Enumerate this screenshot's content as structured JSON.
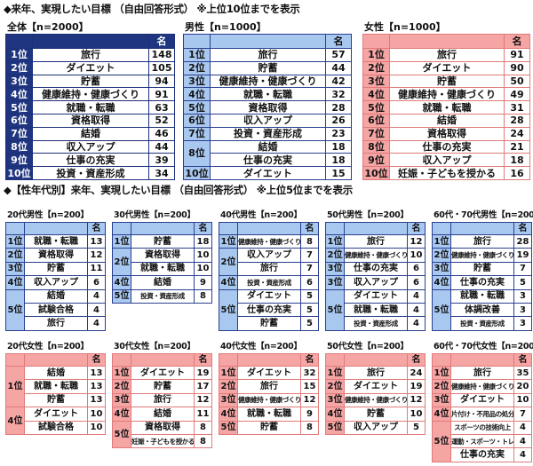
{
  "title1": "◆来年、実現したい目標 （自由回答形式） ※上位10位までを表示",
  "title2": "◆【性年代別】来年、実現したい目標 （自由回答形式） ※上位5位までを表示",
  "count_header": "名",
  "colors": {
    "overall": "#1f3580",
    "male": "#a9c8f0",
    "female": "#f6a5a5"
  },
  "top_tables": [
    {
      "caption": "全体【n=2000】",
      "theme": "all",
      "groups": [
        {
          "rank": "1位",
          "items": [
            {
              "label": "旅行",
              "count": "148"
            }
          ]
        },
        {
          "rank": "2位",
          "items": [
            {
              "label": "ダイエット",
              "count": "105"
            }
          ]
        },
        {
          "rank": "3位",
          "items": [
            {
              "label": "貯蓄",
              "count": "94"
            }
          ]
        },
        {
          "rank": "4位",
          "items": [
            {
              "label": "健康維持・健康づくり",
              "count": "91"
            }
          ]
        },
        {
          "rank": "5位",
          "items": [
            {
              "label": "就職・転職",
              "count": "63"
            }
          ]
        },
        {
          "rank": "6位",
          "items": [
            {
              "label": "資格取得",
              "count": "52"
            }
          ]
        },
        {
          "rank": "7位",
          "items": [
            {
              "label": "結婚",
              "count": "46"
            }
          ]
        },
        {
          "rank": "8位",
          "items": [
            {
              "label": "収入アップ",
              "count": "44"
            }
          ]
        },
        {
          "rank": "9位",
          "items": [
            {
              "label": "仕事の充実",
              "count": "39"
            }
          ]
        },
        {
          "rank": "10位",
          "items": [
            {
              "label": "投資・資産形成",
              "count": "34"
            }
          ]
        }
      ]
    },
    {
      "caption": "男性【n=1000】",
      "theme": "male",
      "groups": [
        {
          "rank": "1位",
          "items": [
            {
              "label": "旅行",
              "count": "57"
            }
          ]
        },
        {
          "rank": "2位",
          "items": [
            {
              "label": "貯蓄",
              "count": "44"
            }
          ]
        },
        {
          "rank": "3位",
          "items": [
            {
              "label": "健康維持・健康づくり",
              "count": "42"
            }
          ]
        },
        {
          "rank": "4位",
          "items": [
            {
              "label": "就職・転職",
              "count": "32"
            }
          ]
        },
        {
          "rank": "5位",
          "items": [
            {
              "label": "資格取得",
              "count": "28"
            }
          ]
        },
        {
          "rank": "6位",
          "items": [
            {
              "label": "収入アップ",
              "count": "26"
            }
          ]
        },
        {
          "rank": "7位",
          "items": [
            {
              "label": "投資・資産形成",
              "count": "23"
            }
          ]
        },
        {
          "rank": "8位",
          "items": [
            {
              "label": "結婚",
              "count": "18"
            },
            {
              "label": "仕事の充実",
              "count": "18"
            }
          ]
        },
        {
          "rank": "10位",
          "items": [
            {
              "label": "ダイエット",
              "count": "15"
            }
          ]
        }
      ]
    },
    {
      "caption": "女性【n=1000】",
      "theme": "fem",
      "groups": [
        {
          "rank": "1位",
          "items": [
            {
              "label": "旅行",
              "count": "91"
            }
          ]
        },
        {
          "rank": "2位",
          "items": [
            {
              "label": "ダイエット",
              "count": "90"
            }
          ]
        },
        {
          "rank": "3位",
          "items": [
            {
              "label": "貯蓄",
              "count": "50"
            }
          ]
        },
        {
          "rank": "4位",
          "items": [
            {
              "label": "健康維持・健康づくり",
              "count": "49"
            }
          ]
        },
        {
          "rank": "5位",
          "items": [
            {
              "label": "就職・転職",
              "count": "31"
            }
          ]
        },
        {
          "rank": "6位",
          "items": [
            {
              "label": "結婚",
              "count": "28"
            }
          ]
        },
        {
          "rank": "7位",
          "items": [
            {
              "label": "資格取得",
              "count": "24"
            }
          ]
        },
        {
          "rank": "8位",
          "items": [
            {
              "label": "仕事の充実",
              "count": "21"
            }
          ]
        },
        {
          "rank": "9位",
          "items": [
            {
              "label": "収入アップ",
              "count": "18"
            }
          ]
        },
        {
          "rank": "10位",
          "items": [
            {
              "label": "妊娠・子どもを授かる",
              "count": "16"
            }
          ]
        }
      ]
    }
  ],
  "male_tables": [
    {
      "caption": "20代男性【n=200】",
      "groups": [
        {
          "rank": "1位",
          "items": [
            {
              "label": "就職・転職",
              "count": "13"
            }
          ]
        },
        {
          "rank": "2位",
          "items": [
            {
              "label": "資格取得",
              "count": "12"
            }
          ]
        },
        {
          "rank": "3位",
          "items": [
            {
              "label": "貯蓄",
              "count": "11"
            }
          ]
        },
        {
          "rank": "4位",
          "items": [
            {
              "label": "収入アップ",
              "count": "6"
            }
          ]
        },
        {
          "rank": "5位",
          "items": [
            {
              "label": "結婚",
              "count": "4"
            },
            {
              "label": "試験合格",
              "count": "4"
            },
            {
              "label": "旅行",
              "count": "4"
            }
          ]
        }
      ]
    },
    {
      "caption": "30代男性【n=200】",
      "groups": [
        {
          "rank": "1位",
          "items": [
            {
              "label": "貯蓄",
              "count": "18"
            }
          ]
        },
        {
          "rank": "2位",
          "items": [
            {
              "label": "資格取得",
              "count": "10"
            },
            {
              "label": "就職・転職",
              "count": "10"
            }
          ]
        },
        {
          "rank": "4位",
          "items": [
            {
              "label": "結婚",
              "count": "9"
            }
          ]
        },
        {
          "rank": "5位",
          "items": [
            {
              "label": "投資・資産形成",
              "count": "8"
            }
          ]
        }
      ]
    },
    {
      "caption": "40代男性【n=200】",
      "groups": [
        {
          "rank": "1位",
          "items": [
            {
              "label": "健康維持・健康づくり",
              "count": "8"
            }
          ]
        },
        {
          "rank": "2位",
          "items": [
            {
              "label": "収入アップ",
              "count": "7"
            },
            {
              "label": "旅行",
              "count": "7"
            }
          ]
        },
        {
          "rank": "4位",
          "items": [
            {
              "label": "投資・資産形成",
              "count": "6"
            }
          ]
        },
        {
          "rank": "5位",
          "items": [
            {
              "label": "ダイエット",
              "count": "5"
            },
            {
              "label": "仕事の充実",
              "count": "5"
            },
            {
              "label": "貯蓄",
              "count": "5"
            }
          ]
        }
      ]
    },
    {
      "caption": "50代男性【n=200】",
      "groups": [
        {
          "rank": "1位",
          "items": [
            {
              "label": "旅行",
              "count": "12"
            }
          ]
        },
        {
          "rank": "2位",
          "items": [
            {
              "label": "健康維持・健康づくり",
              "count": "10"
            }
          ]
        },
        {
          "rank": "3位",
          "items": [
            {
              "label": "仕事の充実",
              "count": "6"
            }
          ]
        },
        {
          "rank": "3位",
          "items": [
            {
              "label": "収入アップ",
              "count": "6"
            }
          ]
        },
        {
          "rank": "5位",
          "items": [
            {
              "label": "ダイエット",
              "count": "4"
            },
            {
              "label": "就職・転職",
              "count": "4"
            },
            {
              "label": "投資・資産形成",
              "count": "4"
            }
          ]
        }
      ]
    },
    {
      "caption": "60代・70代男性【n=200】",
      "groups": [
        {
          "rank": "1位",
          "items": [
            {
              "label": "旅行",
              "count": "28"
            }
          ]
        },
        {
          "rank": "2位",
          "items": [
            {
              "label": "健康維持・健康づくり",
              "count": "19"
            }
          ]
        },
        {
          "rank": "3位",
          "items": [
            {
              "label": "貯蓄",
              "count": "7"
            }
          ]
        },
        {
          "rank": "4位",
          "items": [
            {
              "label": "仕事の充実",
              "count": "5"
            }
          ]
        },
        {
          "rank": "5位",
          "items": [
            {
              "label": "就職・転職",
              "count": "3"
            },
            {
              "label": "体調改善",
              "count": "3"
            },
            {
              "label": "投資・資産形成",
              "count": "3"
            }
          ]
        }
      ]
    }
  ],
  "female_tables": [
    {
      "caption": "20代女性【n=200】",
      "groups": [
        {
          "rank": "1位",
          "items": [
            {
              "label": "結婚",
              "count": "13"
            },
            {
              "label": "就職・転職",
              "count": "13"
            },
            {
              "label": "貯蓄",
              "count": "13"
            }
          ]
        },
        {
          "rank": "4位",
          "items": [
            {
              "label": "ダイエット",
              "count": "10"
            },
            {
              "label": "試験合格",
              "count": "10"
            }
          ]
        }
      ]
    },
    {
      "caption": "30代女性【n=200】",
      "groups": [
        {
          "rank": "1位",
          "items": [
            {
              "label": "ダイエット",
              "count": "19"
            }
          ]
        },
        {
          "rank": "2位",
          "items": [
            {
              "label": "貯蓄",
              "count": "17"
            }
          ]
        },
        {
          "rank": "3位",
          "items": [
            {
              "label": "旅行",
              "count": "12"
            }
          ]
        },
        {
          "rank": "4位",
          "items": [
            {
              "label": "結婚",
              "count": "11"
            }
          ]
        },
        {
          "rank": "5位",
          "items": [
            {
              "label": "資格取得",
              "count": "8"
            },
            {
              "label": "妊娠・子どもを授かる",
              "count": "8"
            }
          ]
        }
      ]
    },
    {
      "caption": "40代女性【n=200】",
      "groups": [
        {
          "rank": "1位",
          "items": [
            {
              "label": "ダイエット",
              "count": "32"
            }
          ]
        },
        {
          "rank": "2位",
          "items": [
            {
              "label": "旅行",
              "count": "15"
            }
          ]
        },
        {
          "rank": "3位",
          "items": [
            {
              "label": "健康維持・健康づくり",
              "count": "12"
            }
          ]
        },
        {
          "rank": "4位",
          "items": [
            {
              "label": "就職・転職",
              "count": "9"
            }
          ]
        },
        {
          "rank": "5位",
          "items": [
            {
              "label": "貯蓄",
              "count": "8"
            }
          ]
        }
      ]
    },
    {
      "caption": "50代女性【n=200】",
      "groups": [
        {
          "rank": "1位",
          "items": [
            {
              "label": "旅行",
              "count": "24"
            }
          ]
        },
        {
          "rank": "2位",
          "items": [
            {
              "label": "ダイエット",
              "count": "19"
            }
          ]
        },
        {
          "rank": "3位",
          "items": [
            {
              "label": "健康維持・健康づくり",
              "count": "12"
            }
          ]
        },
        {
          "rank": "4位",
          "items": [
            {
              "label": "貯蓄",
              "count": "10"
            }
          ]
        },
        {
          "rank": "5位",
          "items": [
            {
              "label": "収入アップ",
              "count": "5"
            }
          ]
        }
      ]
    },
    {
      "caption": "60代・70代女性【n=200】",
      "groups": [
        {
          "rank": "1位",
          "items": [
            {
              "label": "旅行",
              "count": "35"
            }
          ]
        },
        {
          "rank": "2位",
          "items": [
            {
              "label": "健康維持・健康づくり",
              "count": "20"
            }
          ]
        },
        {
          "rank": "3位",
          "items": [
            {
              "label": "ダイエット",
              "count": "10"
            }
          ]
        },
        {
          "rank": "4位",
          "items": [
            {
              "label": "片付け・不用品の処分",
              "count": "7"
            }
          ]
        },
        {
          "rank": "5位",
          "items": [
            {
              "label": "スポーツの技術向上",
              "count": "4"
            },
            {
              "label": "運動・スポーツ・トレーニング",
              "count": "4"
            },
            {
              "label": "仕事の充実",
              "count": "4"
            }
          ]
        }
      ]
    }
  ]
}
